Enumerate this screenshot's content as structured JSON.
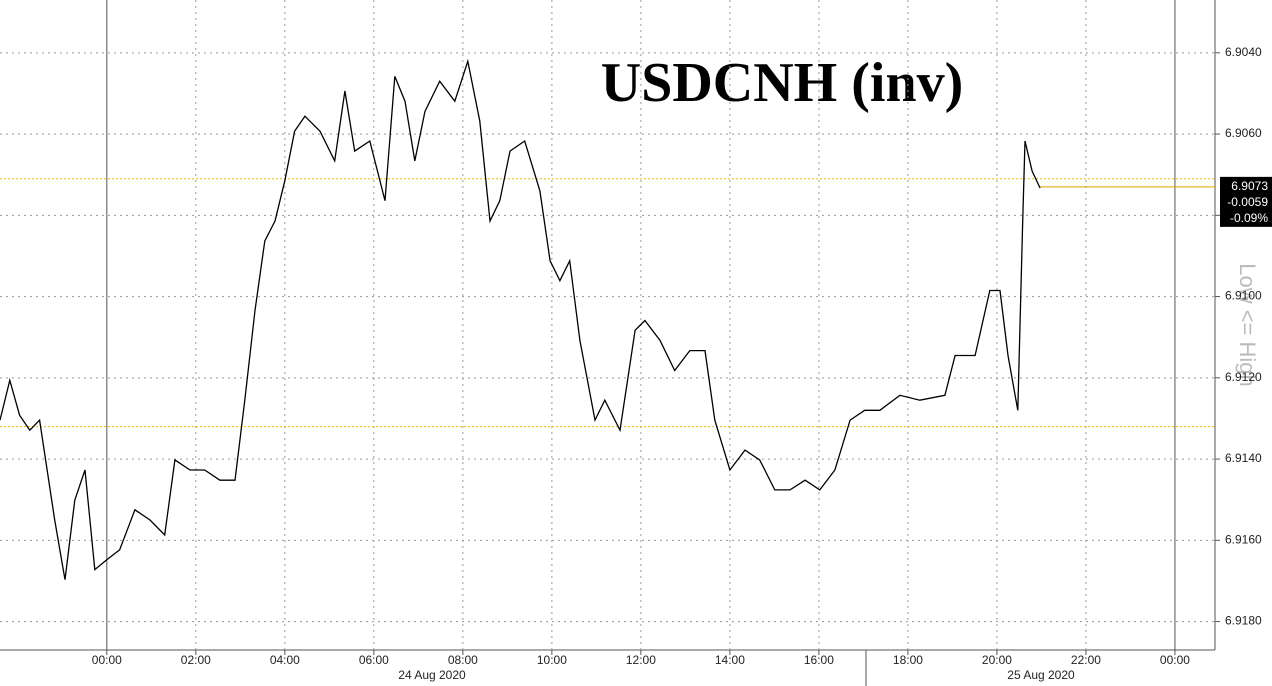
{
  "chart_data": {
    "type": "line",
    "title": "USDCNH (inv)",
    "y_label": "Low <= High",
    "x": [
      -2.4,
      -2.18,
      -1.96,
      -1.73,
      -1.51,
      -1.17,
      -0.94,
      -0.72,
      -0.49,
      -0.27,
      0,
      0.29,
      0.63,
      0.97,
      1.3,
      1.53,
      1.87,
      2.2,
      2.54,
      2.88,
      3.1,
      3.33,
      3.55,
      3.78,
      4,
      4.22,
      4.45,
      4.79,
      5.12,
      5.35,
      5.57,
      5.91,
      6.25,
      6.47,
      6.7,
      6.92,
      7.15,
      7.48,
      7.82,
      8.11,
      8.38,
      8.61,
      8.83,
      9.06,
      9.39,
      9.73,
      9.96,
      10.18,
      10.4,
      10.63,
      10.97,
      11.19,
      11.53,
      11.87,
      12.09,
      12.43,
      12.76,
      13.1,
      13.44,
      13.66,
      14,
      14.34,
      14.67,
      15.01,
      15.35,
      15.69,
      16.02,
      16.36,
      16.7,
      17.03,
      17.37,
      17.82,
      18.27,
      18.83,
      19.06,
      19.51,
      19.84,
      20.07,
      20.25,
      20.47,
      20.58,
      20.63,
      20.79,
      20.97
    ],
    "values": [
      6.91304,
      6.91206,
      6.91292,
      6.91329,
      6.91304,
      6.9155,
      6.91697,
      6.91501,
      6.91427,
      6.91672,
      6.91648,
      6.91623,
      6.91525,
      6.9155,
      6.91587,
      6.91402,
      6.91427,
      6.91427,
      6.91452,
      6.91452,
      6.91255,
      6.91034,
      6.90863,
      6.90814,
      6.90715,
      6.90593,
      6.90556,
      6.90593,
      6.90666,
      6.90494,
      6.90642,
      6.90617,
      6.90764,
      6.90458,
      6.90519,
      6.90666,
      6.90544,
      6.9047,
      6.90519,
      6.90421,
      6.90568,
      6.90814,
      6.90764,
      6.90642,
      6.90617,
      6.9074,
      6.90912,
      6.90961,
      6.90912,
      6.91108,
      6.91304,
      6.91255,
      6.91329,
      6.91083,
      6.91059,
      6.91108,
      6.91182,
      6.91133,
      6.91133,
      6.91304,
      6.91427,
      6.91378,
      6.91402,
      6.91476,
      6.91476,
      6.91452,
      6.91476,
      6.91427,
      6.91304,
      6.9128,
      6.9128,
      6.91243,
      6.91255,
      6.91243,
      6.91145,
      6.91145,
      6.90985,
      6.90985,
      6.91145,
      6.9128,
      6.90814,
      6.90617,
      6.90691,
      6.90733
    ],
    "color": "#000000",
    "ylim": [
      6.9187,
      6.9027
    ],
    "inverted": true,
    "yticks": [
      {
        "value": 6.904,
        "label": "6.9040"
      },
      {
        "value": 6.906,
        "label": "6.9060"
      },
      {
        "value": 6.908,
        "label": null
      },
      {
        "value": 6.91,
        "label": "6.9100"
      },
      {
        "value": 6.912,
        "label": "6.9120"
      },
      {
        "value": 6.914,
        "label": "6.9140"
      },
      {
        "value": 6.916,
        "label": "6.9160"
      },
      {
        "value": 6.918,
        "label": "6.9180"
      }
    ],
    "xlim": [
      -2.4,
      24.9
    ],
    "xticks": [
      {
        "value": 0,
        "label": "00:00"
      },
      {
        "value": 2,
        "label": "02:00"
      },
      {
        "value": 4,
        "label": "04:00"
      },
      {
        "value": 6,
        "label": "06:00"
      },
      {
        "value": 8,
        "label": "08:00"
      },
      {
        "value": 10,
        "label": "10:00"
      },
      {
        "value": 12,
        "label": "12:00"
      },
      {
        "value": 14,
        "label": "14:00"
      },
      {
        "value": 16,
        "label": "16:00"
      },
      {
        "value": 18,
        "label": "18:00"
      },
      {
        "value": 20,
        "label": "20:00"
      },
      {
        "value": 22,
        "label": "22:00"
      },
      {
        "value": 24,
        "label": "00:00"
      }
    ],
    "dates": [
      "24 Aug 2020",
      "25 Aug 2020"
    ],
    "reference_lines": [
      6.9071,
      6.9132
    ],
    "reference_color": "#e0c000",
    "last_price": 6.9073,
    "last_color": "#d9a400",
    "change": -0.0059,
    "change_pct": {
      "value": -0.09,
      "label": "-0.09%"
    },
    "grid": true
  }
}
